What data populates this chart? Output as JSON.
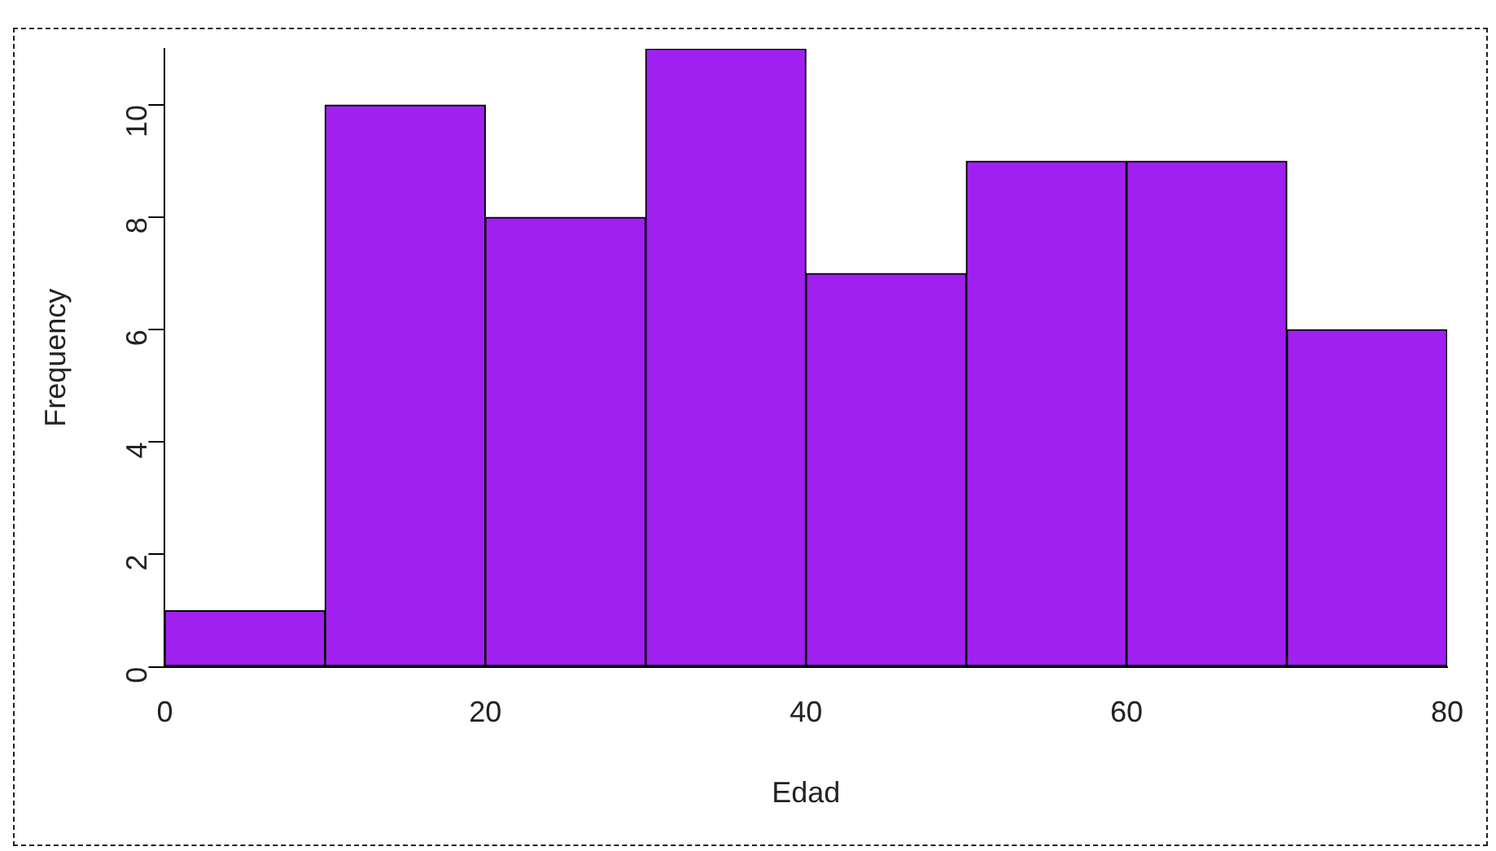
{
  "chart_data": {
    "type": "histogram",
    "xlabel": "Edad",
    "ylabel": "Frequency",
    "bins": [
      0,
      10,
      20,
      30,
      40,
      50,
      60,
      70,
      80
    ],
    "values": [
      1,
      10,
      8,
      11,
      7,
      9,
      9,
      6
    ],
    "color": "#a020f0",
    "xlim": [
      0,
      80
    ],
    "xticks": [
      0,
      20,
      40,
      60,
      80
    ],
    "ylim": [
      0,
      11
    ],
    "yticks": [
      0,
      2,
      4,
      6,
      8,
      10
    ],
    "grid": false,
    "legend": false
  }
}
